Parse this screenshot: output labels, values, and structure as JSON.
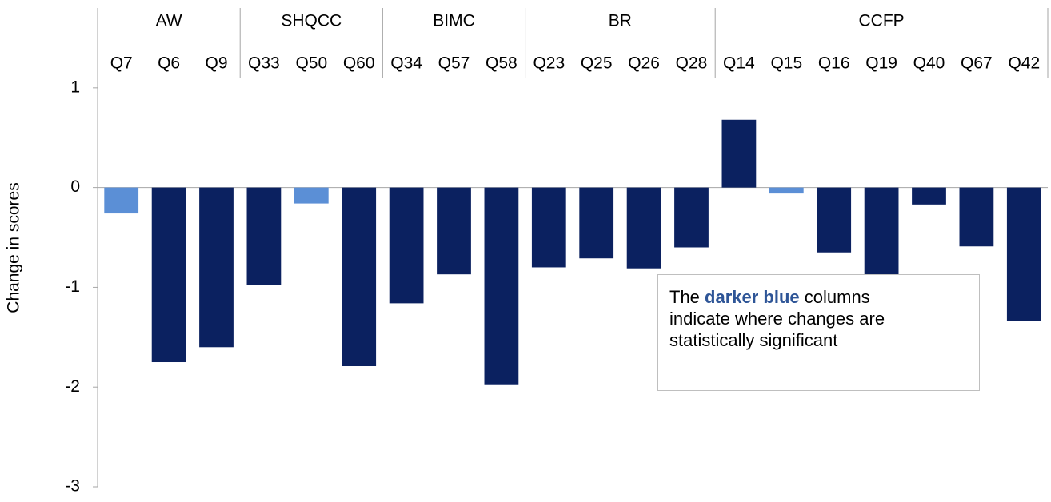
{
  "chart_data": {
    "type": "bar",
    "y_label": "Change in scores",
    "groups": [
      {
        "name": "AW",
        "count": 3
      },
      {
        "name": "SHQCC",
        "count": 3
      },
      {
        "name": "BIMC",
        "count": 3
      },
      {
        "name": "BR",
        "count": 4
      },
      {
        "name": "CCFP",
        "count": 7
      }
    ],
    "categories": [
      "Q7",
      "Q6",
      "Q9",
      "Q33",
      "Q50",
      "Q60",
      "Q34",
      "Q57",
      "Q58",
      "Q23",
      "Q25",
      "Q26",
      "Q28",
      "Q14",
      "Q15",
      "Q16",
      "Q19",
      "Q40",
      "Q67",
      "Q42"
    ],
    "values": [
      -0.26,
      -1.75,
      -1.6,
      -0.98,
      -0.16,
      -1.79,
      -1.16,
      -0.87,
      -1.98,
      -0.8,
      -0.71,
      -0.81,
      -0.6,
      0.68,
      -0.06,
      -0.65,
      -0.88,
      -0.17,
      -0.59,
      -1.34
    ],
    "colors": [
      "#5b8fd6",
      "#0b2160",
      "#0b2160",
      "#0b2160",
      "#5b8fd6",
      "#0b2160",
      "#0b2160",
      "#0b2160",
      "#0b2160",
      "#0b2160",
      "#0b2160",
      "#0b2160",
      "#0b2160",
      "#0b2160",
      "#5b8fd6",
      "#0b2160",
      "#0b2160",
      "#0b2160",
      "#0b2160",
      "#0b2160"
    ],
    "ylim": [
      -3,
      1.8
    ],
    "yticks": [
      -3,
      -2,
      -1,
      0,
      1
    ],
    "annotation": {
      "lines": [
        [
          "The ",
          "darker blue",
          " columns"
        ],
        [
          "indicate where changes are"
        ],
        [
          "statistically significant"
        ]
      ]
    }
  }
}
